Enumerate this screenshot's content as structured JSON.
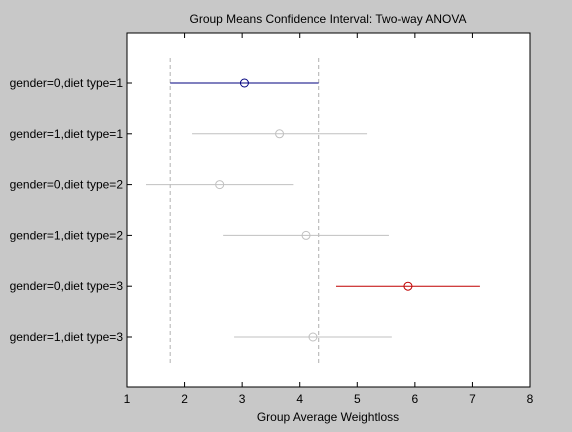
{
  "chart_data": {
    "type": "scatter",
    "title": "Group Means Confidence Interval: Two-way ANOVA",
    "xlabel": "Group Average Weightloss",
    "ylabel": "",
    "xlim": [
      1,
      8
    ],
    "x_ticks": [
      1,
      2,
      3,
      4,
      5,
      6,
      7,
      8
    ],
    "grid": false,
    "reference_lines": [
      1.75,
      4.33
    ],
    "groups": [
      {
        "label": "gender=0,diet type=1",
        "mean": 3.04,
        "lower": 1.75,
        "upper": 4.33,
        "color": "#00007f"
      },
      {
        "label": "gender=1,diet type=1",
        "mean": 3.65,
        "lower": 2.13,
        "upper": 5.17,
        "color": "#c0c0c0"
      },
      {
        "label": "gender=0,diet type=2",
        "mean": 2.61,
        "lower": 1.33,
        "upper": 3.89,
        "color": "#c0c0c0"
      },
      {
        "label": "gender=1,diet type=2",
        "mean": 4.11,
        "lower": 2.67,
        "upper": 5.55,
        "color": "#c0c0c0"
      },
      {
        "label": "gender=0,diet type=3",
        "mean": 5.88,
        "lower": 4.63,
        "upper": 7.13,
        "color": "#c00000"
      },
      {
        "label": "gender=1,diet type=3",
        "mean": 4.23,
        "lower": 2.86,
        "upper": 5.6,
        "color": "#c0c0c0"
      }
    ]
  }
}
